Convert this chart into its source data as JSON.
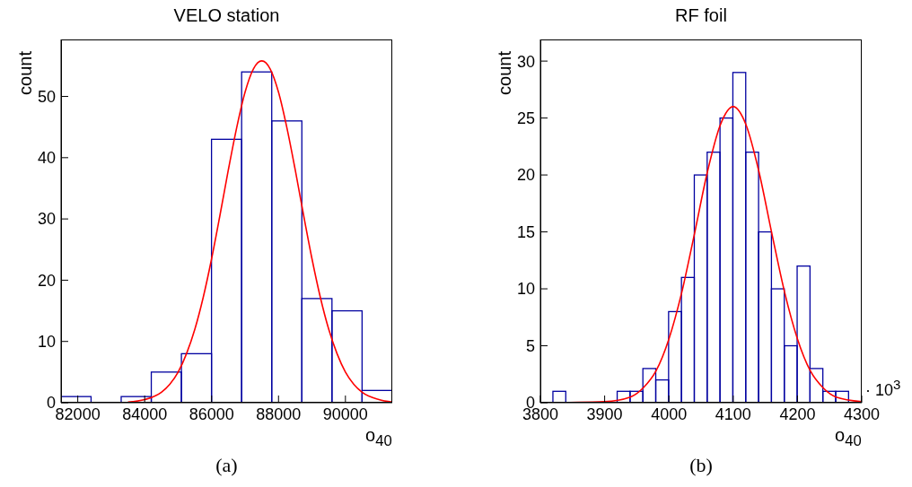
{
  "chart_data": [
    {
      "type": "histogram",
      "title": "VELO station",
      "xlabel": "o$_{40}$",
      "ylabel": "count",
      "annotations": [
        "(a)"
      ],
      "bins": [
        81500,
        82400,
        83300,
        84200,
        85100,
        86000,
        86900,
        87800,
        88700,
        89600,
        90500,
        91400
      ],
      "xlim": [
        81500,
        91400
      ],
      "xticks": [
        82000,
        84000,
        86000,
        88000,
        90000
      ],
      "ylim": [
        0,
        59.3
      ],
      "yticks": [
        0,
        10,
        20,
        30,
        40,
        50
      ],
      "grid": false,
      "legend": false,
      "series": [
        {
          "color": "#0000a0",
          "values": [
            1,
            0,
            1,
            5,
            8,
            43,
            54,
            46,
            17,
            15,
            2
          ]
        },
        {
          "type": "line",
          "color": "#ff0000",
          "x": [
            83500,
            84000,
            84500,
            84750,
            85000,
            85250,
            85500,
            85750,
            86000,
            86250,
            86500,
            86750,
            87000,
            87250,
            87500,
            87750,
            88000,
            88250,
            88500,
            88750,
            89000,
            89250,
            89500,
            89750,
            90000,
            90250,
            90500,
            91000,
            91400
          ],
          "values": [
            0.1,
            0.5,
            1.7,
            3.0,
            5.0,
            8.0,
            12.0,
            17.2,
            23.5,
            30.6,
            38.0,
            44.9,
            50.7,
            54.5,
            55.8,
            54.5,
            50.7,
            44.9,
            38.0,
            30.6,
            23.5,
            17.2,
            12.0,
            8.0,
            5.0,
            3.0,
            1.7,
            0.5,
            0.1
          ]
        }
      ]
    },
    {
      "type": "histogram",
      "title": "RF foil",
      "xlabel": "o$_{40}$",
      "ylabel": "count",
      "annotations": [
        "· 10$^{3}$",
        "(b)"
      ],
      "bins": [
        3800,
        3820,
        3840,
        3860,
        3880,
        3900,
        3920,
        3940,
        3960,
        3980,
        4000,
        4020,
        4040,
        4060,
        4080,
        4100,
        4120,
        4140,
        4160,
        4180,
        4200,
        4220,
        4240,
        4260,
        4280,
        4300
      ],
      "xlim": [
        3800,
        4300
      ],
      "xticks": [
        3800,
        3900,
        4000,
        4100,
        4200,
        4300
      ],
      "ylim": [
        0,
        31.9
      ],
      "yticks": [
        0,
        5,
        10,
        15,
        20,
        25,
        30
      ],
      "grid": false,
      "legend": false,
      "series": [
        {
          "color": "#0000a0",
          "values": [
            0,
            1,
            0,
            0,
            0,
            0,
            1,
            1,
            3,
            2,
            8,
            11,
            20,
            22,
            25,
            29,
            22,
            15,
            10,
            5,
            12,
            3,
            1,
            1,
            0
          ]
        },
        {
          "type": "line",
          "color": "#ff0000",
          "x": [
            3800,
            3900,
            3940,
            3960,
            3980,
            4000,
            4020,
            4040,
            4060,
            4080,
            4100,
            4120,
            4140,
            4160,
            4180,
            4200,
            4220,
            4240,
            4260,
            4300
          ],
          "values": [
            0,
            0.1,
            0.5,
            1.3,
            2.8,
            5.6,
            9.7,
            14.9,
            20.3,
            24.4,
            26.0,
            24.4,
            20.3,
            14.9,
            9.7,
            5.6,
            2.8,
            1.3,
            0.5,
            0.1
          ]
        }
      ]
    }
  ]
}
